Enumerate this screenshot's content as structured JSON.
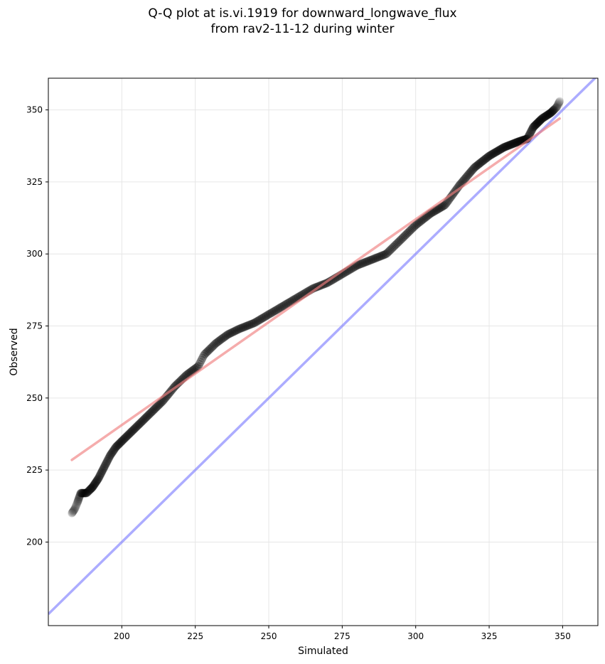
{
  "chart_data": {
    "type": "scatter",
    "title": "Q-Q plot at is.vi.1919 for downward_longwave_flux",
    "subtitle": "from rav2-11-12 during winter",
    "xlabel": "Simulated",
    "ylabel": "Observed",
    "xlim": [
      175,
      362
    ],
    "ylim": [
      171,
      361
    ],
    "xticks": [
      200,
      225,
      250,
      275,
      300,
      325,
      350
    ],
    "yticks": [
      200,
      225,
      250,
      275,
      300,
      325,
      350
    ],
    "grid": true,
    "colors": {
      "points": "#000000",
      "fit_line": "#f08080",
      "one_to_one": "#8080ff"
    },
    "fit_line": {
      "x": [
        183,
        349
      ],
      "y": [
        228.5,
        347
      ]
    },
    "one_to_one_line": {
      "x": [
        175,
        362
      ],
      "y": [
        175,
        362
      ]
    },
    "quantile_curve": {
      "x": [
        183,
        184,
        185,
        186,
        188,
        190,
        192,
        194,
        196,
        198,
        200,
        203,
        206,
        210,
        214,
        218,
        222,
        226,
        228,
        232,
        236,
        240,
        245,
        250,
        255,
        260,
        265,
        270,
        275,
        280,
        285,
        290,
        295,
        300,
        305,
        310,
        315,
        320,
        325,
        330,
        335,
        338,
        340,
        343,
        346,
        348,
        349
      ],
      "y": [
        210,
        211.5,
        214,
        217,
        217,
        219,
        222,
        226,
        230,
        233,
        235,
        238,
        241,
        245,
        249,
        254,
        258,
        261,
        265,
        269,
        272,
        274,
        276,
        279,
        282,
        285,
        288,
        290,
        293,
        296,
        298,
        300,
        305,
        310,
        314,
        317,
        324,
        330,
        334,
        337,
        339,
        340,
        344,
        347,
        349,
        351,
        353
      ]
    }
  }
}
